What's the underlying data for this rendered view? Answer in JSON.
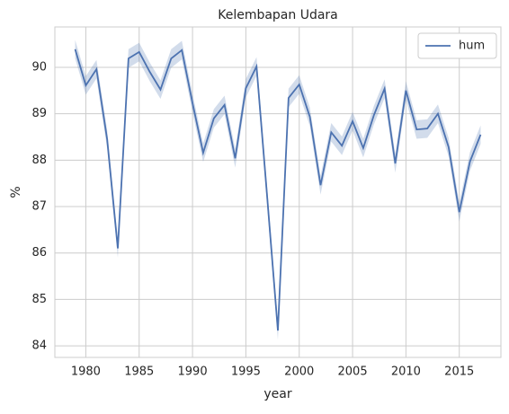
{
  "chart_data": {
    "type": "line",
    "title": "Kelembapan Udara",
    "x_label": "year",
    "y_label": "%",
    "x": [
      1979,
      1980,
      1981,
      1982,
      1983,
      1984,
      1985,
      1986,
      1987,
      1988,
      1989,
      1990,
      1991,
      1992,
      1993,
      1994,
      1995,
      1996,
      1997,
      1998,
      1999,
      2000,
      2001,
      2002,
      2003,
      2004,
      2005,
      2006,
      2007,
      2008,
      2009,
      2010,
      2011,
      2012,
      2013,
      2014,
      2015,
      2016,
      2017
    ],
    "series": [
      {
        "name": "hum",
        "color": "#4c72b0",
        "values": [
          90.39,
          89.61,
          89.96,
          88.45,
          86.1,
          90.19,
          90.33,
          89.9,
          89.52,
          90.19,
          90.37,
          89.23,
          88.16,
          88.9,
          89.19,
          88.04,
          89.55,
          90.02,
          87.2,
          84.33,
          89.34,
          89.63,
          88.93,
          87.46,
          88.6,
          88.31,
          88.84,
          88.26,
          88.97,
          89.54,
          87.93,
          89.5,
          88.66,
          88.68,
          89.0,
          88.28,
          86.88,
          87.97,
          88.55
        ],
        "ci_lower": [
          90.19,
          89.41,
          89.76,
          88.25,
          85.9,
          89.99,
          90.13,
          89.7,
          89.32,
          89.99,
          90.17,
          89.03,
          87.96,
          88.7,
          88.99,
          87.84,
          89.35,
          89.82,
          87.0,
          84.13,
          89.14,
          89.43,
          88.73,
          87.26,
          88.4,
          88.11,
          88.64,
          88.06,
          88.77,
          89.34,
          87.73,
          89.3,
          88.46,
          88.48,
          88.8,
          88.08,
          86.68,
          87.77,
          88.35
        ],
        "ci_upper": [
          90.59,
          89.81,
          90.16,
          88.65,
          86.3,
          90.39,
          90.53,
          90.1,
          89.72,
          90.39,
          90.57,
          89.43,
          88.36,
          89.1,
          89.39,
          88.24,
          89.75,
          90.22,
          87.4,
          84.53,
          89.54,
          89.83,
          89.13,
          87.66,
          88.8,
          88.51,
          89.04,
          88.46,
          89.17,
          89.74,
          88.13,
          89.7,
          88.86,
          88.88,
          89.2,
          88.48,
          87.08,
          88.17,
          88.75
        ]
      }
    ],
    "xlim": [
      1977.1,
      2018.9
    ],
    "ylim": [
      83.75,
      90.87
    ],
    "xticks": [
      1980,
      1985,
      1990,
      1995,
      2000,
      2005,
      2010,
      2015
    ],
    "yticks": [
      84,
      85,
      86,
      87,
      88,
      89,
      90
    ],
    "grid": true,
    "legend": "upper right"
  }
}
